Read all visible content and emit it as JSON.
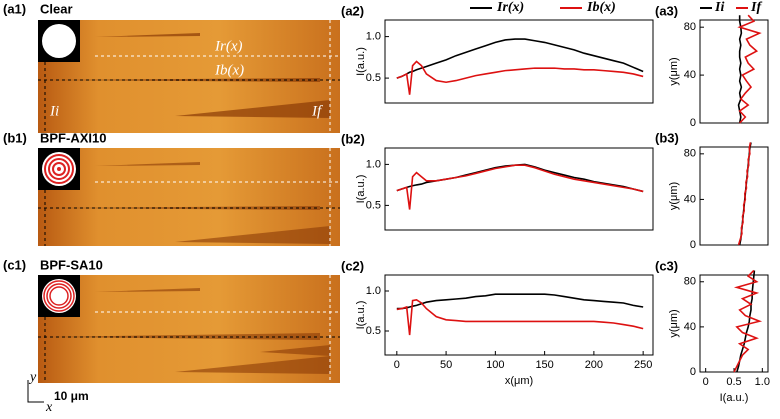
{
  "images": [
    {
      "label": "(a1)",
      "title": "Clear",
      "annotations": [
        "Ir(x)",
        "Ib(x)",
        "Ii",
        "If"
      ]
    },
    {
      "label": "(b1)",
      "title": "BPF-AXI10"
    },
    {
      "label": "(c1)",
      "title": "BPF-SA10",
      "scale_bar": "10 μm",
      "axes": [
        "y",
        "x"
      ]
    }
  ],
  "chart_data": [
    {
      "type": "line",
      "orientation": "horizontal",
      "label": "(a2)",
      "ylabel": "I(a.u.)",
      "x": [
        0,
        5,
        10,
        13,
        16,
        20,
        25,
        30,
        40,
        50,
        60,
        70,
        80,
        90,
        100,
        110,
        120,
        130,
        140,
        150,
        160,
        170,
        180,
        190,
        200,
        210,
        220,
        230,
        240,
        250
      ],
      "xlim": [
        -12,
        260
      ],
      "ylim": [
        0.2,
        1.2
      ],
      "yticks": [
        0.5,
        {
          "value": 1,
          "label": "1.0"
        }
      ],
      "series": [
        {
          "name": "Ir(x)",
          "color": "#000000",
          "values": [
            0.5,
            0.52,
            0.55,
            0.57,
            0.58,
            0.6,
            0.62,
            0.64,
            0.68,
            0.72,
            0.77,
            0.81,
            0.85,
            0.89,
            0.93,
            0.96,
            0.97,
            0.97,
            0.95,
            0.93,
            0.9,
            0.87,
            0.84,
            0.8,
            0.77,
            0.74,
            0.71,
            0.68,
            0.63,
            0.58
          ]
        },
        {
          "name": "Ib(x)",
          "color": "#dd1111",
          "values": [
            0.5,
            0.52,
            0.55,
            0.3,
            0.65,
            0.7,
            0.65,
            0.55,
            0.47,
            0.45,
            0.47,
            0.5,
            0.53,
            0.55,
            0.57,
            0.59,
            0.6,
            0.61,
            0.62,
            0.62,
            0.62,
            0.61,
            0.61,
            0.6,
            0.6,
            0.59,
            0.58,
            0.57,
            0.55,
            0.52
          ]
        }
      ]
    },
    {
      "type": "line",
      "orientation": "horizontal",
      "label": "(b2)",
      "ylabel": "I(a.u.)",
      "x": [
        0,
        5,
        10,
        13,
        16,
        20,
        25,
        30,
        40,
        50,
        60,
        70,
        80,
        90,
        100,
        110,
        120,
        130,
        140,
        150,
        160,
        170,
        180,
        190,
        200,
        210,
        220,
        230,
        240,
        250
      ],
      "xlim": [
        -12,
        260
      ],
      "ylim": [
        0.2,
        1.2
      ],
      "yticks": [
        0.5,
        {
          "value": 1,
          "label": "1.0"
        }
      ],
      "series": [
        {
          "color": "#000000",
          "values": [
            0.68,
            0.7,
            0.72,
            0.73,
            0.74,
            0.75,
            0.76,
            0.78,
            0.8,
            0.82,
            0.84,
            0.87,
            0.9,
            0.93,
            0.96,
            0.98,
            0.99,
            1.0,
            0.97,
            0.93,
            0.9,
            0.87,
            0.84,
            0.82,
            0.79,
            0.77,
            0.75,
            0.73,
            0.7,
            0.67
          ]
        },
        {
          "color": "#dd1111",
          "values": [
            0.68,
            0.7,
            0.72,
            0.45,
            0.85,
            0.9,
            0.85,
            0.8,
            0.8,
            0.82,
            0.84,
            0.86,
            0.89,
            0.92,
            0.95,
            0.97,
            0.99,
            0.99,
            0.96,
            0.92,
            0.88,
            0.85,
            0.82,
            0.8,
            0.78,
            0.76,
            0.74,
            0.72,
            0.7,
            0.67
          ]
        }
      ]
    },
    {
      "type": "line",
      "orientation": "horizontal",
      "label": "(c2)",
      "ylabel": "I(a.u.)",
      "xlabel": "x(μm)",
      "x": [
        0,
        5,
        10,
        13,
        16,
        20,
        25,
        30,
        40,
        50,
        60,
        70,
        80,
        90,
        100,
        110,
        120,
        130,
        140,
        150,
        160,
        170,
        180,
        190,
        200,
        210,
        220,
        230,
        240,
        250
      ],
      "xlim": [
        -12,
        260
      ],
      "ylim": [
        0.2,
        1.2
      ],
      "xticks": [
        0,
        50,
        100,
        150,
        200,
        250
      ],
      "yticks": [
        0.5,
        {
          "value": 1,
          "label": "1.0"
        }
      ],
      "series": [
        {
          "color": "#000000",
          "values": [
            0.78,
            0.78,
            0.79,
            0.8,
            0.81,
            0.82,
            0.84,
            0.86,
            0.88,
            0.89,
            0.9,
            0.91,
            0.93,
            0.94,
            0.96,
            0.96,
            0.96,
            0.96,
            0.96,
            0.96,
            0.95,
            0.93,
            0.91,
            0.89,
            0.88,
            0.87,
            0.86,
            0.85,
            0.82,
            0.8
          ]
        },
        {
          "color": "#dd1111",
          "values": [
            0.77,
            0.78,
            0.8,
            0.45,
            0.88,
            0.89,
            0.85,
            0.78,
            0.68,
            0.64,
            0.63,
            0.62,
            0.62,
            0.62,
            0.62,
            0.62,
            0.62,
            0.62,
            0.62,
            0.62,
            0.62,
            0.62,
            0.62,
            0.62,
            0.62,
            0.61,
            0.6,
            0.58,
            0.56,
            0.53
          ]
        }
      ]
    },
    {
      "type": "line",
      "orientation": "vertical",
      "label": "(a3)",
      "ylabel": "y(μm)",
      "y": [
        0,
        5,
        10,
        15,
        20,
        25,
        30,
        35,
        40,
        45,
        50,
        55,
        60,
        65,
        70,
        75,
        80,
        85,
        90
      ],
      "xlim": [
        -0.1,
        1.1
      ],
      "ylim": [
        0,
        86
      ],
      "yticks": [
        0,
        40,
        80
      ],
      "series": [
        {
          "name": "Ii",
          "color": "#000000",
          "values": [
            0.6,
            0.62,
            0.6,
            0.58,
            0.62,
            0.6,
            0.63,
            0.6,
            0.62,
            0.6,
            0.62,
            0.6,
            0.6,
            0.62,
            0.6,
            0.63,
            0.62,
            0.6,
            0.6
          ]
        },
        {
          "name": "If",
          "color": "#dd1111",
          "values": [
            0.6,
            0.7,
            0.6,
            0.75,
            0.62,
            0.7,
            0.8,
            0.72,
            0.65,
            0.85,
            0.75,
            0.7,
            0.9,
            0.78,
            0.72,
            0.95,
            0.6,
            0.85,
            0.75
          ]
        }
      ]
    },
    {
      "type": "line",
      "orientation": "vertical",
      "label": "(b3)",
      "ylabel": "y(μm)",
      "y": [
        0,
        5,
        10,
        15,
        20,
        25,
        30,
        35,
        40,
        45,
        50,
        55,
        60,
        65,
        70,
        75,
        80,
        85,
        90
      ],
      "xlim": [
        -0.1,
        1.1
      ],
      "ylim": [
        0,
        86
      ],
      "yticks": [
        0,
        40,
        80
      ],
      "series": [
        {
          "color": "#000000",
          "values": [
            0.6,
            0.62,
            0.63,
            0.64,
            0.65,
            0.66,
            0.67,
            0.68,
            0.69,
            0.7,
            0.71,
            0.72,
            0.73,
            0.74,
            0.75,
            0.76,
            0.77,
            0.78,
            0.8
          ]
        },
        {
          "color": "#dd1111",
          "values": [
            0.58,
            0.61,
            0.64,
            0.63,
            0.66,
            0.65,
            0.68,
            0.67,
            0.7,
            0.69,
            0.72,
            0.71,
            0.74,
            0.73,
            0.76,
            0.75,
            0.78,
            0.77,
            0.79
          ]
        }
      ]
    },
    {
      "type": "line",
      "orientation": "vertical",
      "label": "(c3)",
      "ylabel": "y(μm)",
      "xlabel": "I(a.u.)",
      "y": [
        0,
        5,
        10,
        15,
        20,
        25,
        30,
        35,
        40,
        45,
        50,
        55,
        60,
        65,
        70,
        75,
        80,
        85,
        90
      ],
      "xlim": [
        -0.1,
        1.1
      ],
      "ylim": [
        0,
        86
      ],
      "yticks": [
        0,
        40,
        80
      ],
      "xticks": [
        0,
        0.5,
        {
          "value": 1,
          "label": "1.0"
        }
      ],
      "series": [
        {
          "color": "#000000",
          "values": [
            0.55,
            0.58,
            0.6,
            0.62,
            0.65,
            0.68,
            0.7,
            0.72,
            0.75,
            0.77,
            0.78,
            0.8,
            0.8,
            0.82,
            0.82,
            0.83,
            0.84,
            0.85,
            0.86
          ]
        },
        {
          "color": "#dd1111",
          "values": [
            0.5,
            0.55,
            0.6,
            0.65,
            0.75,
            0.6,
            0.9,
            0.65,
            0.55,
            0.95,
            0.7,
            0.6,
            0.8,
            0.65,
            0.9,
            0.55,
            0.9,
            0.75,
            0.85
          ]
        }
      ]
    }
  ]
}
